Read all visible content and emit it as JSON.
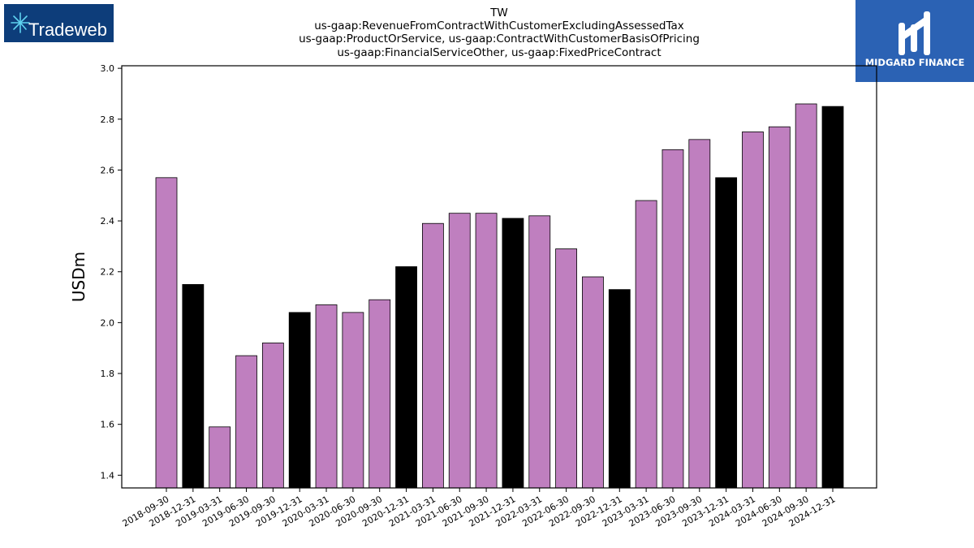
{
  "header": {
    "company_logo_text": "Tradeweb",
    "brand_logo_text": "MIDGARD FINANCE"
  },
  "chart_data": {
    "type": "bar",
    "title_lines": [
      "TW",
      "us-gaap:RevenueFromContractWithCustomerExcludingAssessedTax",
      "us-gaap:ProductOrService, us-gaap:ContractWithCustomerBasisOfPricing",
      "us-gaap:FinancialServiceOther, us-gaap:FixedPriceContract"
    ],
    "ylabel": "USDm",
    "xlabel": "",
    "ylim": [
      1.35,
      3.01
    ],
    "yticks": [
      "1.4",
      "1.6",
      "1.8",
      "2.0",
      "2.2",
      "2.4",
      "2.6",
      "2.8",
      "3.0"
    ],
    "grid": false,
    "colors": {
      "quarter": "#bf7fbf",
      "year_end": "#000000"
    },
    "categories": [
      "2018-09-30",
      "2018-12-31",
      "2019-03-31",
      "2019-06-30",
      "2019-09-30",
      "2019-12-31",
      "2020-03-31",
      "2020-06-30",
      "2020-09-30",
      "2020-12-31",
      "2021-03-31",
      "2021-06-30",
      "2021-09-30",
      "2021-12-31",
      "2022-03-31",
      "2022-06-30",
      "2022-09-30",
      "2022-12-31",
      "2023-03-31",
      "2023-06-30",
      "2023-09-30",
      "2023-12-31",
      "2024-03-31",
      "2024-06-30",
      "2024-09-30",
      "2024-12-31"
    ],
    "values": [
      2.57,
      2.15,
      1.59,
      1.87,
      1.92,
      2.04,
      2.07,
      2.04,
      2.09,
      2.22,
      2.39,
      2.43,
      2.43,
      2.41,
      2.42,
      2.29,
      2.18,
      2.13,
      2.48,
      2.68,
      2.72,
      2.57,
      2.75,
      2.77,
      2.86,
      2.85
    ]
  }
}
